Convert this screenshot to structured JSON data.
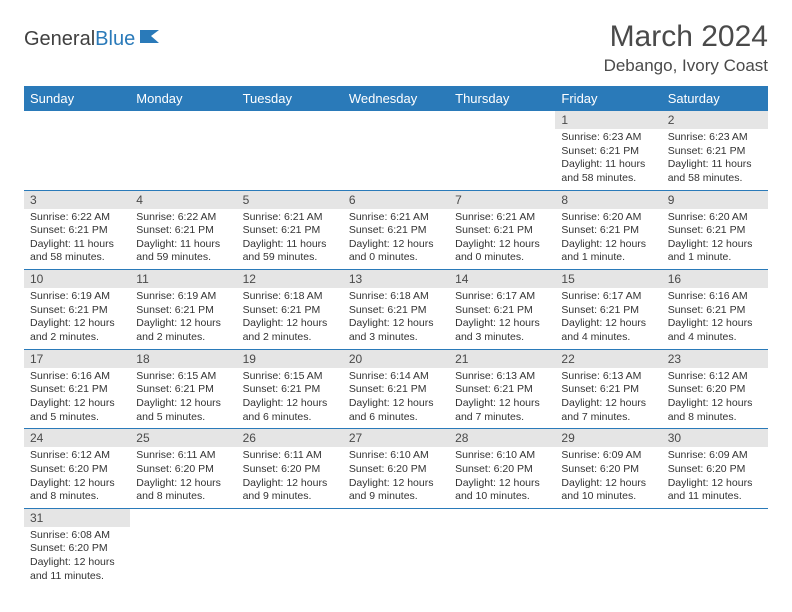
{
  "logo": {
    "text1": "General",
    "text2": "Blue"
  },
  "title": "March 2024",
  "location": "Debango, Ivory Coast",
  "colors": {
    "header_bg": "#2a7ab9",
    "header_text": "#ffffff",
    "daynum_bg": "#e5e5e5",
    "text": "#333333",
    "border": "#2a7ab9"
  },
  "weekdays": [
    "Sunday",
    "Monday",
    "Tuesday",
    "Wednesday",
    "Thursday",
    "Friday",
    "Saturday"
  ],
  "weeks": [
    [
      null,
      null,
      null,
      null,
      null,
      {
        "n": "1",
        "sr": "6:23 AM",
        "ss": "6:21 PM",
        "dl": "11 hours and 58 minutes."
      },
      {
        "n": "2",
        "sr": "6:23 AM",
        "ss": "6:21 PM",
        "dl": "11 hours and 58 minutes."
      }
    ],
    [
      {
        "n": "3",
        "sr": "6:22 AM",
        "ss": "6:21 PM",
        "dl": "11 hours and 58 minutes."
      },
      {
        "n": "4",
        "sr": "6:22 AM",
        "ss": "6:21 PM",
        "dl": "11 hours and 59 minutes."
      },
      {
        "n": "5",
        "sr": "6:21 AM",
        "ss": "6:21 PM",
        "dl": "11 hours and 59 minutes."
      },
      {
        "n": "6",
        "sr": "6:21 AM",
        "ss": "6:21 PM",
        "dl": "12 hours and 0 minutes."
      },
      {
        "n": "7",
        "sr": "6:21 AM",
        "ss": "6:21 PM",
        "dl": "12 hours and 0 minutes."
      },
      {
        "n": "8",
        "sr": "6:20 AM",
        "ss": "6:21 PM",
        "dl": "12 hours and 1 minute."
      },
      {
        "n": "9",
        "sr": "6:20 AM",
        "ss": "6:21 PM",
        "dl": "12 hours and 1 minute."
      }
    ],
    [
      {
        "n": "10",
        "sr": "6:19 AM",
        "ss": "6:21 PM",
        "dl": "12 hours and 2 minutes."
      },
      {
        "n": "11",
        "sr": "6:19 AM",
        "ss": "6:21 PM",
        "dl": "12 hours and 2 minutes."
      },
      {
        "n": "12",
        "sr": "6:18 AM",
        "ss": "6:21 PM",
        "dl": "12 hours and 2 minutes."
      },
      {
        "n": "13",
        "sr": "6:18 AM",
        "ss": "6:21 PM",
        "dl": "12 hours and 3 minutes."
      },
      {
        "n": "14",
        "sr": "6:17 AM",
        "ss": "6:21 PM",
        "dl": "12 hours and 3 minutes."
      },
      {
        "n": "15",
        "sr": "6:17 AM",
        "ss": "6:21 PM",
        "dl": "12 hours and 4 minutes."
      },
      {
        "n": "16",
        "sr": "6:16 AM",
        "ss": "6:21 PM",
        "dl": "12 hours and 4 minutes."
      }
    ],
    [
      {
        "n": "17",
        "sr": "6:16 AM",
        "ss": "6:21 PM",
        "dl": "12 hours and 5 minutes."
      },
      {
        "n": "18",
        "sr": "6:15 AM",
        "ss": "6:21 PM",
        "dl": "12 hours and 5 minutes."
      },
      {
        "n": "19",
        "sr": "6:15 AM",
        "ss": "6:21 PM",
        "dl": "12 hours and 6 minutes."
      },
      {
        "n": "20",
        "sr": "6:14 AM",
        "ss": "6:21 PM",
        "dl": "12 hours and 6 minutes."
      },
      {
        "n": "21",
        "sr": "6:13 AM",
        "ss": "6:21 PM",
        "dl": "12 hours and 7 minutes."
      },
      {
        "n": "22",
        "sr": "6:13 AM",
        "ss": "6:21 PM",
        "dl": "12 hours and 7 minutes."
      },
      {
        "n": "23",
        "sr": "6:12 AM",
        "ss": "6:20 PM",
        "dl": "12 hours and 8 minutes."
      }
    ],
    [
      {
        "n": "24",
        "sr": "6:12 AM",
        "ss": "6:20 PM",
        "dl": "12 hours and 8 minutes."
      },
      {
        "n": "25",
        "sr": "6:11 AM",
        "ss": "6:20 PM",
        "dl": "12 hours and 8 minutes."
      },
      {
        "n": "26",
        "sr": "6:11 AM",
        "ss": "6:20 PM",
        "dl": "12 hours and 9 minutes."
      },
      {
        "n": "27",
        "sr": "6:10 AM",
        "ss": "6:20 PM",
        "dl": "12 hours and 9 minutes."
      },
      {
        "n": "28",
        "sr": "6:10 AM",
        "ss": "6:20 PM",
        "dl": "12 hours and 10 minutes."
      },
      {
        "n": "29",
        "sr": "6:09 AM",
        "ss": "6:20 PM",
        "dl": "12 hours and 10 minutes."
      },
      {
        "n": "30",
        "sr": "6:09 AM",
        "ss": "6:20 PM",
        "dl": "12 hours and 11 minutes."
      }
    ],
    [
      {
        "n": "31",
        "sr": "6:08 AM",
        "ss": "6:20 PM",
        "dl": "12 hours and 11 minutes."
      },
      null,
      null,
      null,
      null,
      null,
      null
    ]
  ],
  "labels": {
    "sunrise": "Sunrise:",
    "sunset": "Sunset:",
    "daylight": "Daylight:"
  }
}
